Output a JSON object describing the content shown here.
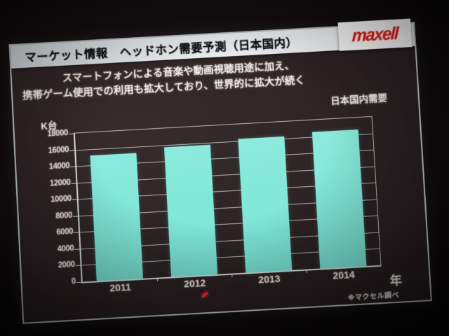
{
  "brand": {
    "name": "maxell",
    "color": "#e32119"
  },
  "slide": {
    "title": "マーケット情報　ヘッドホン需要予測（日本国内）",
    "subtitle_line1": "スマートフォンによる音楽や動画視聴用途に加え、",
    "subtitle_line2": "携帯ゲーム使用での利用も拡大しており、世界的に拡大が続く",
    "series_label": "日本国内需要",
    "footnote": "※マクセル調べ"
  },
  "chart_data": {
    "type": "bar",
    "title": "日本国内需要",
    "unit_label": "K台",
    "xlabel": "年",
    "categories": [
      "2011",
      "2012",
      "2013",
      "2014"
    ],
    "values": [
      15200,
      15700,
      16200,
      16600
    ],
    "ylim": [
      0,
      18000
    ],
    "ytick_step": 2000,
    "grid": true,
    "legend": "none",
    "bar_color": "#79e5d6"
  },
  "annotations": {
    "laser_pointer_dot": true
  }
}
